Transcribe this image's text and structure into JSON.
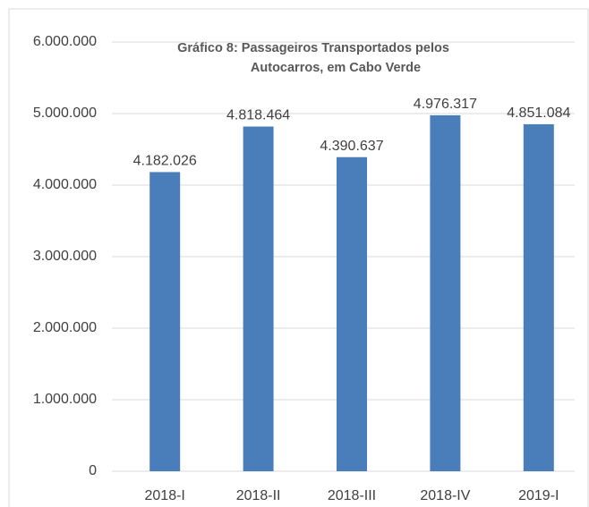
{
  "chart_data": {
    "type": "bar",
    "title": [
      "Gráfico 8: Passageiros Transportados pelos",
      "Autocarros, em Cabo Verde"
    ],
    "categories": [
      "2018-I",
      "2018-II",
      "2018-III",
      "2018-IV",
      "2019-I"
    ],
    "values": [
      4182026,
      4818464,
      4390637,
      4976317,
      4851084
    ],
    "value_labels": [
      "4.182.026",
      "4.818.464",
      "4.390.637",
      "4.976.317",
      "4.851.084"
    ],
    "color": "#4a7ebb",
    "ylim": [
      0,
      6000000
    ],
    "yticks": [
      0,
      {
        "value": 1000000,
        "label": "1.000.000"
      },
      {
        "value": 2000000,
        "label": "2.000.000"
      },
      {
        "value": 3000000,
        "label": "3.000.000"
      },
      {
        "value": 4000000,
        "label": "4.000.000"
      },
      {
        "value": 5000000,
        "label": "5.000.000"
      },
      {
        "value": 6000000,
        "label": "6.000.000"
      }
    ],
    "grid": true
  }
}
